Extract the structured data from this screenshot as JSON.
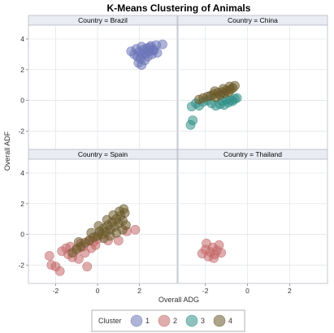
{
  "chart_data": {
    "type": "scatter",
    "title": "K-Means Clustering of Animals",
    "xlabel": "Overall ADG",
    "ylabel": "Overall ADF",
    "xlim": [
      -3.3,
      3.8
    ],
    "ylim": [
      -3.2,
      4.9
    ],
    "x_ticks": [
      -2,
      0,
      2
    ],
    "y_ticks": [
      -2,
      0,
      2,
      4
    ],
    "grid": true,
    "legend_position": "bottom",
    "legend_title": "Cluster",
    "cluster_colors": {
      "1": "#6b74b8",
      "2": "#c46a6a",
      "3": "#2f8f86",
      "4": "#6b5a2a"
    },
    "panels": [
      {
        "label": "Country = Brazil",
        "series": [
          {
            "name": "1",
            "points": [
              [
                1.6,
                3.2
              ],
              [
                1.75,
                3.0
              ],
              [
                1.85,
                3.35
              ],
              [
                1.9,
                2.85
              ],
              [
                2.0,
                3.15
              ],
              [
                2.05,
                2.7
              ],
              [
                2.1,
                3.5
              ],
              [
                2.15,
                2.95
              ],
              [
                2.2,
                3.3
              ],
              [
                2.25,
                2.6
              ],
              [
                2.3,
                3.05
              ],
              [
                2.35,
                3.4
              ],
              [
                2.4,
                2.85
              ],
              [
                2.45,
                3.2
              ],
              [
                2.55,
                3.55
              ],
              [
                2.6,
                3.0
              ],
              [
                2.7,
                3.3
              ],
              [
                2.8,
                3.6
              ],
              [
                2.85,
                3.1
              ],
              [
                3.1,
                3.65
              ],
              [
                1.95,
                2.45
              ],
              [
                2.1,
                2.3
              ],
              [
                2.5,
                3.45
              ],
              [
                2.65,
                3.25
              ]
            ]
          }
        ]
      },
      {
        "label": "Country = China",
        "series": [
          {
            "name": "3",
            "points": [
              [
                -2.7,
                -1.6
              ],
              [
                -2.6,
                -1.3
              ],
              [
                -2.65,
                -0.4
              ],
              [
                -2.45,
                -0.2
              ],
              [
                -2.3,
                -0.35
              ],
              [
                -2.1,
                -0.1
              ],
              [
                -1.9,
                0.0
              ],
              [
                -1.7,
                -0.2
              ],
              [
                -1.5,
                -0.35
              ],
              [
                -1.3,
                -0.25
              ],
              [
                -1.1,
                -0.3
              ],
              [
                -0.9,
                -0.15
              ],
              [
                -0.8,
                0.0
              ],
              [
                -0.7,
                -0.05
              ],
              [
                -0.6,
                0.1
              ],
              [
                -0.5,
                0.15
              ],
              [
                -1.2,
                -0.05
              ],
              [
                -1.0,
                0.05
              ]
            ]
          },
          {
            "name": "4",
            "points": [
              [
                -2.3,
                0.05
              ],
              [
                -2.1,
                0.15
              ],
              [
                -1.9,
                0.25
              ],
              [
                -1.75,
                0.3
              ],
              [
                -1.6,
                0.4
              ],
              [
                -1.5,
                0.2
              ],
              [
                -1.4,
                0.5
              ],
              [
                -1.3,
                0.35
              ],
              [
                -1.2,
                0.55
              ],
              [
                -1.1,
                0.45
              ],
              [
                -1.0,
                0.65
              ],
              [
                -0.9,
                0.55
              ],
              [
                -0.8,
                0.7
              ],
              [
                -0.7,
                0.8
              ],
              [
                -0.6,
                0.95
              ],
              [
                -0.85,
                0.9
              ],
              [
                -1.15,
                0.75
              ],
              [
                -1.55,
                0.6
              ]
            ]
          }
        ]
      },
      {
        "label": "Country = Spain",
        "series": [
          {
            "name": "2",
            "points": [
              [
                -2.3,
                -1.4
              ],
              [
                -2.2,
                -2.0
              ],
              [
                -2.0,
                -2.1
              ],
              [
                -1.8,
                -2.4
              ],
              [
                -1.7,
                -1.1
              ],
              [
                -1.5,
                -0.9
              ],
              [
                -1.4,
                -1.3
              ],
              [
                -1.2,
                -1.5
              ],
              [
                -1.0,
                -1.0
              ],
              [
                -0.9,
                -1.6
              ],
              [
                -0.8,
                -0.6
              ],
              [
                -0.6,
                -1.2
              ],
              [
                -0.5,
                -2.1
              ],
              [
                -0.4,
                -0.4
              ],
              [
                -0.3,
                -0.9
              ],
              [
                -0.2,
                -0.5
              ],
              [
                -0.1,
                -0.7
              ],
              [
                0.0,
                -0.3
              ],
              [
                -0.7,
                -0.8
              ],
              [
                -1.3,
                -0.8
              ],
              [
                1.0,
                -0.4
              ],
              [
                1.4,
                0.2
              ],
              [
                1.8,
                0.3
              ],
              [
                0.5,
                -0.4
              ]
            ]
          },
          {
            "name": "4",
            "points": [
              [
                -1.2,
                -1.2
              ],
              [
                -1.0,
                -0.95
              ],
              [
                -0.8,
                -0.8
              ],
              [
                -0.6,
                -0.55
              ],
              [
                -0.4,
                -0.4
              ],
              [
                -0.2,
                -0.2
              ],
              [
                0.0,
                -0.1
              ],
              [
                0.1,
                0.2
              ],
              [
                0.2,
                0.0
              ],
              [
                0.3,
                0.4
              ],
              [
                0.4,
                0.15
              ],
              [
                0.5,
                0.6
              ],
              [
                0.6,
                0.3
              ],
              [
                0.7,
                0.8
              ],
              [
                0.8,
                0.5
              ],
              [
                0.9,
                1.0
              ],
              [
                1.0,
                0.7
              ],
              [
                1.1,
                1.2
              ],
              [
                1.2,
                0.9
              ],
              [
                1.3,
                1.4
              ],
              [
                1.35,
                0.6
              ],
              [
                1.2,
                0.3
              ],
              [
                0.9,
                0.1
              ],
              [
                0.6,
                -0.1
              ],
              [
                0.3,
                -0.25
              ],
              [
                1.25,
                1.65
              ],
              [
                -0.3,
                0.1
              ],
              [
                0.05,
                0.55
              ],
              [
                -0.9,
                -0.5
              ],
              [
                0.45,
                0.95
              ],
              [
                0.75,
                1.25
              ],
              [
                1.05,
                1.5
              ]
            ]
          }
        ]
      },
      {
        "label": "Country = Thailand",
        "series": [
          {
            "name": "2",
            "points": [
              [
                -2.15,
                -1.25
              ],
              [
                -2.0,
                -1.0
              ],
              [
                -1.95,
                -0.6
              ],
              [
                -1.85,
                -1.45
              ],
              [
                -1.75,
                -1.15
              ],
              [
                -1.65,
                -0.85
              ],
              [
                -1.55,
                -1.3
              ],
              [
                -1.45,
                -1.05
              ],
              [
                -1.35,
                -0.7
              ],
              [
                -1.25,
                -1.2
              ],
              [
                -1.6,
                -1.55
              ]
            ]
          }
        ]
      }
    ]
  }
}
